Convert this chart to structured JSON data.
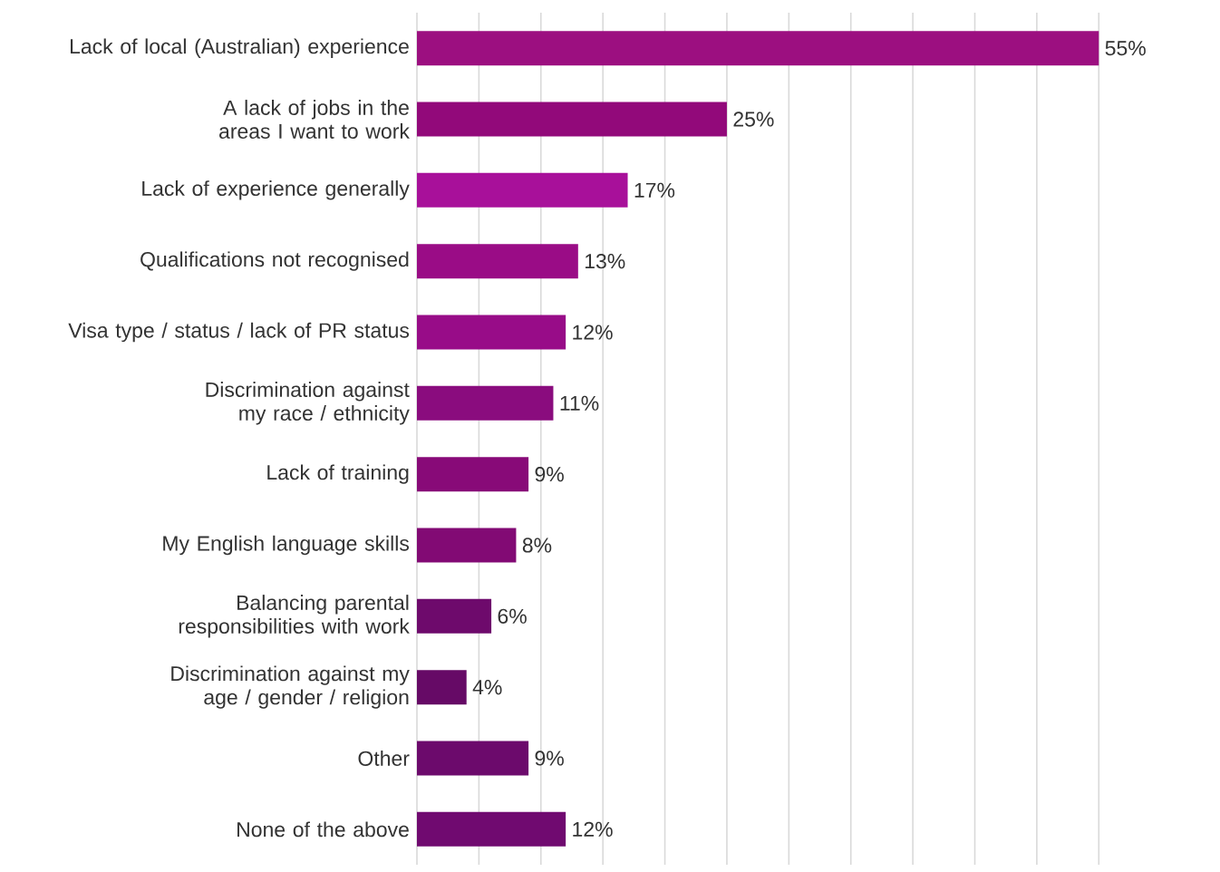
{
  "chart_data": {
    "type": "bar",
    "orientation": "horizontal",
    "categories": [
      "Lack of local (Australian) experience",
      "A lack of jobs in the areas I want to work",
      "Lack of experience generally",
      "Qualifications not recognised",
      "Visa type / status / lack of PR status",
      "Discrimination against my race / ethnicity",
      "Lack of training",
      "My English language skills",
      "Balancing parental responsibilities with work",
      "Discrimination against my age / gender / religion",
      "Other",
      "None of the above"
    ],
    "values": [
      55,
      25,
      17,
      13,
      12,
      11,
      9,
      8,
      6,
      4,
      9,
      12
    ],
    "value_labels": [
      "55%",
      "25%",
      "17%",
      "13%",
      "12%",
      "11%",
      "9%",
      "8%",
      "6%",
      "4%",
      "9%",
      "12%"
    ],
    "colors": [
      "#9c0f80",
      "#92097a",
      "#a8109a",
      "#9a0c86",
      "#980c88",
      "#8a0c7e",
      "#880a78",
      "#820a74",
      "#6e0a6c",
      "#660a66",
      "#6c0a6c",
      "#700a70"
    ],
    "grid": "x",
    "tick_labels": "y"
  }
}
